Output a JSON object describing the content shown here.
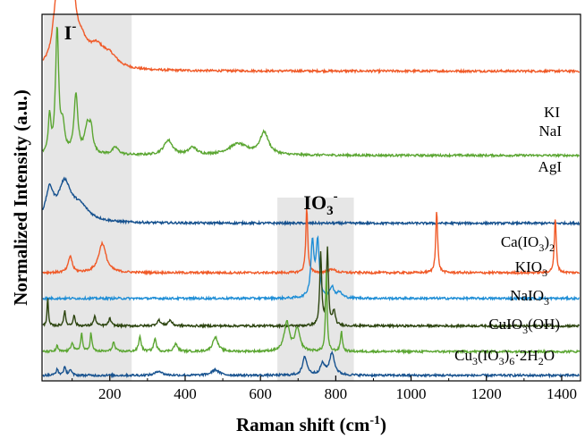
{
  "chart_data": {
    "type": "line",
    "xlabel_main": "Raman shift (cm",
    "xlabel_exp": "-1",
    "xlabel_tail": ")",
    "ylabel": "Normalized Intensity (a.u.)",
    "xlim": [
      20,
      1450
    ],
    "x_ticks": [
      200,
      400,
      600,
      800,
      1000,
      1200,
      1400
    ],
    "x_tick_labels": [
      "200",
      "400",
      "600",
      "800",
      "1000",
      "1200",
      "1400"
    ],
    "regions": [
      {
        "label": "I",
        "sup": "-",
        "x_range": [
          25,
          258
        ]
      },
      {
        "label": "IO",
        "sub": "3",
        "sup": "-",
        "x_range": [
          645,
          848
        ]
      }
    ],
    "series": [
      {
        "name": "KI",
        "label": "KI",
        "color": "#f05a28",
        "baseline": 0.845,
        "peaks": [
          [
            55,
            0.07,
            10
          ],
          [
            68,
            0.18,
            12
          ],
          [
            88,
            0.27,
            10
          ],
          [
            100,
            0.13,
            12
          ],
          [
            125,
            0.05,
            20
          ],
          [
            165,
            0.05,
            25
          ],
          [
            200,
            0.03,
            25
          ]
        ]
      },
      {
        "name": "NaI",
        "label": "NaI",
        "color": "#5ba632",
        "baseline": 0.615,
        "peaks": [
          [
            40,
            0.1,
            4
          ],
          [
            60,
            0.34,
            5
          ],
          [
            75,
            0.07,
            6
          ],
          [
            110,
            0.16,
            6
          ],
          [
            140,
            0.07,
            8
          ],
          [
            150,
            0.06,
            6
          ],
          [
            215,
            0.02,
            10
          ],
          [
            355,
            0.04,
            14
          ],
          [
            420,
            0.02,
            12
          ],
          [
            540,
            0.03,
            30
          ],
          [
            610,
            0.06,
            14
          ]
        ]
      },
      {
        "name": "AgI",
        "label": "AgI",
        "color": "#17528f",
        "baseline": 0.43,
        "peaks": [
          [
            40,
            0.08,
            12
          ],
          [
            80,
            0.1,
            20
          ],
          [
            120,
            0.04,
            30
          ]
        ]
      },
      {
        "name": "Ca(IO3)2",
        "label_parts": [
          [
            "Ca(IO",
            ""
          ],
          [
            "3",
            "sub"
          ],
          [
            ")",
            ""
          ],
          [
            "2",
            "sub"
          ]
        ],
        "color": "#f05a28",
        "baseline": 0.295,
        "peaks": [
          [
            95,
            0.045,
            6
          ],
          [
            180,
            0.08,
            12
          ],
          [
            723,
            0.18,
            3
          ],
          [
            790,
            0.01,
            10
          ],
          [
            1068,
            0.17,
            3
          ],
          [
            1383,
            0.15,
            3
          ]
        ]
      },
      {
        "name": "KIO3",
        "label_parts": [
          [
            "KIO",
            ""
          ],
          [
            "3",
            "sub"
          ]
        ],
        "color": "#1f8ed6",
        "baseline": 0.225,
        "peaks": [
          [
            738,
            0.15,
            5
          ],
          [
            752,
            0.15,
            5
          ],
          [
            790,
            0.03,
            6
          ],
          [
            810,
            0.015,
            8
          ]
        ]
      },
      {
        "name": "NaIO3",
        "label_parts": [
          [
            "NaIO",
            ""
          ],
          [
            "3",
            "sub"
          ]
        ],
        "color": "#2d4510",
        "baseline": 0.15,
        "peaks": [
          [
            35,
            0.08,
            2
          ],
          [
            80,
            0.04,
            3
          ],
          [
            105,
            0.03,
            3
          ],
          [
            160,
            0.025,
            4
          ],
          [
            200,
            0.02,
            4
          ],
          [
            330,
            0.015,
            6
          ],
          [
            360,
            0.015,
            6
          ],
          [
            760,
            0.2,
            3
          ],
          [
            778,
            0.21,
            3
          ],
          [
            795,
            0.04,
            4
          ]
        ]
      },
      {
        "name": "CuIO3(OH)",
        "label_parts": [
          [
            "CuIO",
            ""
          ],
          [
            "3",
            "sub"
          ],
          [
            "(OH)",
            ""
          ]
        ],
        "color": "#5ba632",
        "baseline": 0.08,
        "peaks": [
          [
            60,
            0.015,
            3
          ],
          [
            100,
            0.025,
            4
          ],
          [
            125,
            0.05,
            3
          ],
          [
            150,
            0.05,
            3
          ],
          [
            210,
            0.025,
            4
          ],
          [
            280,
            0.04,
            4
          ],
          [
            320,
            0.035,
            4
          ],
          [
            375,
            0.02,
            6
          ],
          [
            480,
            0.04,
            8
          ],
          [
            670,
            0.08,
            8
          ],
          [
            698,
            0.06,
            8
          ],
          [
            775,
            0.22,
            2.5
          ],
          [
            815,
            0.055,
            3
          ]
        ]
      },
      {
        "name": "Cu3(IO3)6·2H2O",
        "label_parts": [
          [
            "Cu",
            ""
          ],
          [
            "3",
            "sub"
          ],
          [
            "(IO",
            ""
          ],
          [
            "3",
            "sub"
          ],
          [
            ")",
            ""
          ],
          [
            "6",
            "sub"
          ],
          [
            "·2H",
            ""
          ],
          [
            "2",
            "sub"
          ],
          [
            "O",
            ""
          ]
        ],
        "color": "#17528f",
        "baseline": 0.015,
        "peaks": [
          [
            60,
            0.015,
            4
          ],
          [
            80,
            0.02,
            4
          ],
          [
            95,
            0.015,
            4
          ],
          [
            330,
            0.012,
            10
          ],
          [
            480,
            0.015,
            12
          ],
          [
            718,
            0.05,
            7
          ],
          [
            765,
            0.03,
            7
          ],
          [
            790,
            0.06,
            8
          ]
        ]
      }
    ]
  }
}
